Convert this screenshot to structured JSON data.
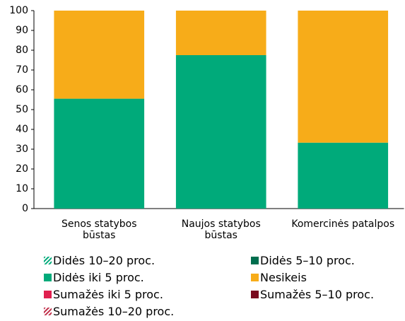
{
  "chart_data": {
    "type": "stacked_bar",
    "categories": [
      "Senos statybos būstas",
      "Naujos statybos būstas",
      "Komercinės patalpos"
    ],
    "series": [
      {
        "name": "Didės 10–20 proc.",
        "color": "#00aa7a",
        "pattern": "hatch",
        "values": [
          0,
          0,
          0
        ]
      },
      {
        "name": "Didės 5–10 proc.",
        "color": "#006e4e",
        "values": [
          0,
          0,
          0
        ]
      },
      {
        "name": "Didės iki 5 proc.",
        "color": "#00aa7a",
        "values": [
          55.5,
          77.5,
          33.3
        ]
      },
      {
        "name": "Nesikeis",
        "color": "#f7ac19",
        "values": [
          44.5,
          22.5,
          66.7
        ]
      },
      {
        "name": "Sumažės iki 5 proc.",
        "color": "#e0204f",
        "values": [
          0,
          0,
          0
        ]
      },
      {
        "name": "Sumažės 5–10 proc.",
        "color": "#7a0a1e",
        "values": [
          0,
          0,
          0
        ]
      },
      {
        "name": "Sumažės 10–20 proc.",
        "color": "#c0304a",
        "pattern": "hatch",
        "values": [
          0,
          0,
          0
        ]
      }
    ],
    "ylim": [
      0,
      100
    ],
    "yticks": [
      0,
      10,
      20,
      30,
      40,
      50,
      60,
      70,
      80,
      90,
      100
    ],
    "grid": false
  }
}
